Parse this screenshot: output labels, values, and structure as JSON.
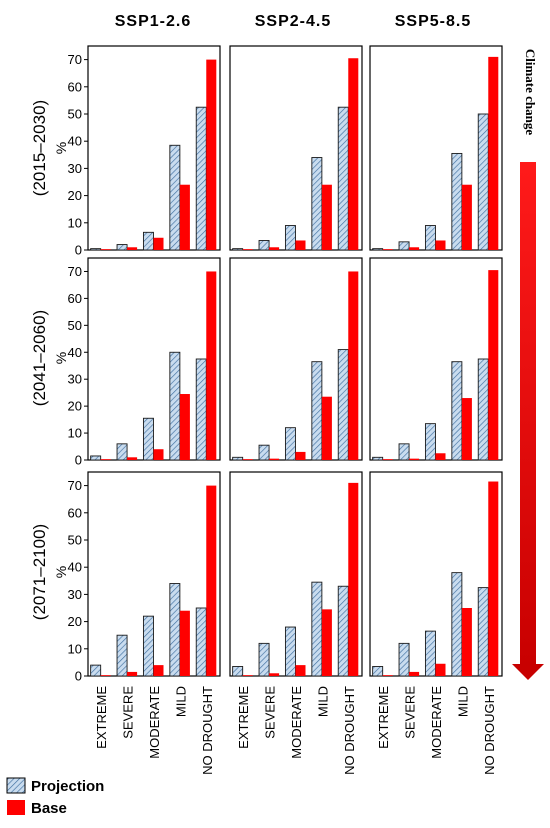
{
  "chart_data": {
    "type": "bar",
    "columns": [
      "SSP1-2.6",
      "SSP2-4.5",
      "SSP5-8.5"
    ],
    "rows": [
      "(2015–2030)",
      "(2041–2060)",
      "(2071–2100)"
    ],
    "categories": [
      "EXTREME",
      "SEVERE",
      "MODERATE",
      "MILD",
      "NO DROUGHT"
    ],
    "ylabel": "%",
    "ylim": [
      0,
      75
    ],
    "yticks": [
      "0",
      "10",
      "20",
      "30",
      "40",
      "50",
      "60",
      "70"
    ],
    "legend": {
      "position": "bottom-left",
      "projection": "Projection",
      "base": "Base"
    },
    "side_label": "Climate change",
    "colors": {
      "projection_fill": "#c9dcef",
      "projection_hatch": "#3f6f9f",
      "base": "#ff0000",
      "arrow": "#d10000"
    },
    "panels": [
      {
        "column": "SSP1-2.6",
        "row": "(2015–2030)",
        "series": [
          {
            "name": "Projection",
            "values": [
              0.5,
              2,
              6.5,
              38.5,
              52.5
            ]
          },
          {
            "name": "Base",
            "values": [
              0.3,
              1,
              4.5,
              24,
              70
            ]
          }
        ]
      },
      {
        "column": "SSP2-4.5",
        "row": "(2015–2030)",
        "series": [
          {
            "name": "Projection",
            "values": [
              0.5,
              3.5,
              9,
              34,
              52.5
            ]
          },
          {
            "name": "Base",
            "values": [
              0.3,
              1,
              3.5,
              24,
              70.5
            ]
          }
        ]
      },
      {
        "column": "SSP5-8.5",
        "row": "(2015–2030)",
        "series": [
          {
            "name": "Projection",
            "values": [
              0.5,
              3,
              9,
              35.5,
              50
            ]
          },
          {
            "name": "Base",
            "values": [
              0.3,
              1,
              3.5,
              24,
              71
            ]
          }
        ]
      },
      {
        "column": "SSP1-2.6",
        "row": "(2041–2060)",
        "series": [
          {
            "name": "Projection",
            "values": [
              1.5,
              6,
              15.5,
              40,
              37.5
            ]
          },
          {
            "name": "Base",
            "values": [
              0.3,
              1,
              4,
              24.5,
              70
            ]
          }
        ]
      },
      {
        "column": "SSP2-4.5",
        "row": "(2041–2060)",
        "series": [
          {
            "name": "Projection",
            "values": [
              1,
              5.5,
              12,
              36.5,
              41
            ]
          },
          {
            "name": "Base",
            "values": [
              0.3,
              0.5,
              3,
              23.5,
              70
            ]
          }
        ]
      },
      {
        "column": "SSP5-8.5",
        "row": "(2041–2060)",
        "series": [
          {
            "name": "Projection",
            "values": [
              1,
              6,
              13.5,
              36.5,
              37.5
            ]
          },
          {
            "name": "Base",
            "values": [
              0.3,
              0.5,
              2.5,
              23,
              70.5
            ]
          }
        ]
      },
      {
        "column": "SSP1-2.6",
        "row": "(2071–2100)",
        "series": [
          {
            "name": "Projection",
            "values": [
              4,
              15,
              22,
              34,
              25
            ]
          },
          {
            "name": "Base",
            "values": [
              0.3,
              1.5,
              4,
              24,
              70
            ]
          }
        ]
      },
      {
        "column": "SSP2-4.5",
        "row": "(2071–2100)",
        "series": [
          {
            "name": "Projection",
            "values": [
              3.5,
              12,
              18,
              34.5,
              33
            ]
          },
          {
            "name": "Base",
            "values": [
              0.3,
              1,
              4,
              24.5,
              71
            ]
          }
        ]
      },
      {
        "column": "SSP5-8.5",
        "row": "(2071–2100)",
        "series": [
          {
            "name": "Projection",
            "values": [
              3.5,
              12,
              16.5,
              38,
              32.5
            ]
          },
          {
            "name": "Base",
            "values": [
              0.3,
              1.5,
              4.5,
              25,
              71.5
            ]
          }
        ]
      }
    ]
  }
}
